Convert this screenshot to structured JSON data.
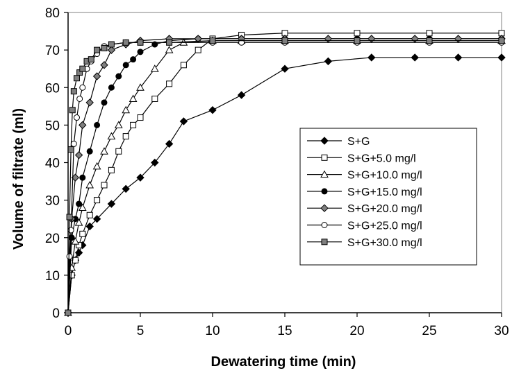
{
  "chart_data": {
    "type": "line",
    "title": "",
    "xlabel": "Dewatering time (min)",
    "ylabel": "Volume of filtrate (ml)",
    "xlim": [
      0,
      30
    ],
    "ylim": [
      0,
      80
    ],
    "xticks": [
      0,
      5,
      10,
      15,
      20,
      25,
      30
    ],
    "yticks": [
      0,
      10,
      20,
      30,
      40,
      50,
      60,
      70,
      80
    ],
    "grid": false,
    "legend_position": "right-middle",
    "series": [
      {
        "name": "S+G",
        "marker": "diamond",
        "fill": "#000000",
        "x": [
          0,
          0.25,
          0.5,
          0.75,
          1,
          1.5,
          2,
          3,
          4,
          5,
          6,
          7,
          8,
          10,
          12,
          15,
          18,
          21,
          24,
          27,
          30
        ],
        "y": [
          0,
          10,
          14,
          16,
          18,
          23,
          25,
          29,
          33,
          36,
          40,
          45,
          51,
          54,
          58,
          65,
          67,
          68,
          68,
          68,
          68
        ]
      },
      {
        "name": "S+G+5.0 mg/l",
        "marker": "square",
        "fill": "#ffffff",
        "x": [
          0,
          0.25,
          0.5,
          0.75,
          1,
          1.5,
          2,
          2.5,
          3,
          3.5,
          4,
          4.5,
          5,
          6,
          7,
          8,
          9,
          10,
          12,
          15,
          20,
          25,
          30
        ],
        "y": [
          0,
          10,
          14,
          18,
          21,
          26,
          30,
          34,
          38,
          43,
          47,
          50,
          52,
          57,
          61,
          66,
          70,
          73,
          74,
          74.5,
          74.5,
          74.5,
          74.5
        ]
      },
      {
        "name": "S+G+10.0 mg/l",
        "marker": "triangle",
        "fill": "#ffffff",
        "x": [
          0,
          0.25,
          0.5,
          0.75,
          1,
          1.5,
          2,
          2.5,
          3,
          3.5,
          4,
          4.5,
          5,
          6,
          7,
          8,
          10,
          12,
          15,
          20,
          25,
          30
        ],
        "y": [
          0,
          12,
          19,
          24,
          28,
          34,
          39,
          43,
          47,
          50,
          54,
          57,
          60,
          65,
          70,
          72,
          72.5,
          72.5,
          72.5,
          72.5,
          72.5,
          72.5
        ]
      },
      {
        "name": "S+G+15.0 mg/l",
        "marker": "circle",
        "fill": "#000000",
        "x": [
          0,
          0.25,
          0.5,
          0.75,
          1,
          1.5,
          2,
          2.5,
          3,
          3.5,
          4,
          4.5,
          5,
          6,
          7,
          9,
          12,
          15,
          20,
          25,
          30
        ],
        "y": [
          0,
          20,
          25,
          29,
          36,
          43,
          50,
          56,
          60,
          63,
          66,
          67.5,
          69.5,
          71.5,
          72.5,
          73,
          73,
          73,
          73,
          73,
          73
        ]
      },
      {
        "name": "S+G+20.0 mg/l",
        "marker": "diamond",
        "fill": "#7f7f7f",
        "x": [
          0,
          0.25,
          0.5,
          0.75,
          1,
          1.5,
          2,
          2.5,
          3,
          4,
          5,
          7,
          9,
          12,
          15,
          18,
          21,
          24,
          27,
          30
        ],
        "y": [
          0,
          25,
          36,
          42,
          50,
          56,
          63,
          66,
          70,
          71.5,
          72.5,
          73,
          73,
          73,
          73,
          73,
          73,
          73,
          73,
          73
        ]
      },
      {
        "name": "S+G+25.0 mg/l",
        "marker": "circle",
        "fill": "#ffffff",
        "x": [
          0,
          0.1,
          0.2,
          0.4,
          0.6,
          0.8,
          1,
          1.3,
          1.6,
          2,
          2.5,
          3,
          4,
          5,
          7,
          10,
          12,
          15,
          20,
          25,
          30
        ],
        "y": [
          0,
          15,
          22,
          45,
          52,
          57,
          60,
          65,
          67,
          69,
          71,
          71.5,
          72,
          72,
          72,
          72,
          72,
          72,
          72,
          72,
          72
        ]
      },
      {
        "name": "S+G+30.0 mg/l",
        "marker": "square",
        "fill": "#7f7f7f",
        "x": [
          0,
          0.1,
          0.2,
          0.3,
          0.4,
          0.6,
          0.8,
          1,
          1.3,
          1.6,
          2,
          2.5,
          3,
          4,
          5,
          7,
          10,
          15,
          20,
          25,
          30
        ],
        "y": [
          0,
          25.5,
          43.5,
          54,
          59,
          62.5,
          64,
          65,
          67,
          67.5,
          70,
          70.5,
          71.5,
          72,
          72,
          72,
          72.5,
          72.5,
          72.5,
          72.5,
          72.5
        ]
      }
    ]
  }
}
